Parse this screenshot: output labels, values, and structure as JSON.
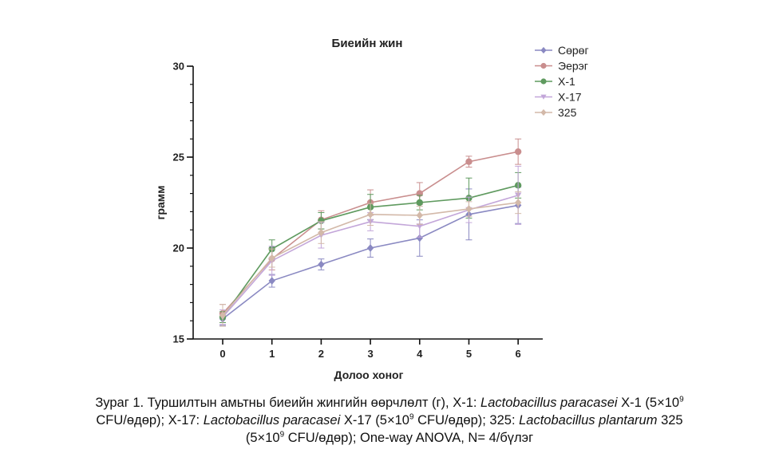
{
  "chart_data": {
    "type": "line",
    "title": "Биеийн жин",
    "xlabel": "Долоо хоног",
    "ylabel": "грамм",
    "x": [
      0,
      1,
      2,
      3,
      4,
      5,
      6
    ],
    "xlim": [
      -0.6,
      6.5
    ],
    "ylim": [
      15,
      30
    ],
    "xticks": [
      0,
      1,
      2,
      3,
      4,
      5,
      6
    ],
    "yticks": [
      15,
      20,
      25,
      30
    ],
    "y_minor_step": 1,
    "grid": false,
    "legend_position": "top-right",
    "series": [
      {
        "name": "Сөрөг",
        "color": "#8a89c2",
        "marker": "diamond",
        "values": [
          16.1,
          18.2,
          19.1,
          20.0,
          20.55,
          21.85,
          22.35
        ],
        "errors": [
          0.35,
          0.35,
          0.3,
          0.5,
          1.0,
          1.4,
          1.0
        ]
      },
      {
        "name": "Эерэг",
        "color": "#c98e8e",
        "marker": "circle",
        "values": [
          16.4,
          19.4,
          21.55,
          22.5,
          23.0,
          24.75,
          25.3
        ],
        "errors": [
          0.5,
          0.6,
          0.5,
          0.7,
          0.6,
          0.3,
          0.7
        ]
      },
      {
        "name": "X-1",
        "color": "#5f9a5f",
        "marker": "circle",
        "values": [
          16.2,
          19.95,
          21.5,
          22.25,
          22.5,
          22.75,
          23.45
        ],
        "errors": [
          0.3,
          0.5,
          0.45,
          0.7,
          0.4,
          1.1,
          0.7
        ]
      },
      {
        "name": "X-17",
        "color": "#c3a6d9",
        "marker": "triangle-down",
        "values": [
          16.2,
          19.3,
          20.7,
          21.45,
          21.2,
          22.1,
          22.9
        ],
        "errors": [
          0.4,
          0.8,
          0.7,
          0.5,
          0.6,
          0.7,
          1.6
        ]
      },
      {
        "name": "325",
        "color": "#d3b9a9",
        "marker": "diamond",
        "values": [
          16.3,
          19.45,
          20.85,
          21.85,
          21.8,
          22.15,
          22.5
        ],
        "errors": [
          0.6,
          0.5,
          0.6,
          0.6,
          0.5,
          0.4,
          0.6
        ]
      }
    ]
  },
  "caption": {
    "line1_a": "Зураг 1. Туршилтын амьтны биеийн жингийн өөрчлөлт (г), X-1: ",
    "line1_species": "Lactobacillus paracasei",
    "line1_b": " X-1 (5×10",
    "line1_exp": "9",
    "line2_a": "CFU/өдөр); X-17: ",
    "line2_species": "Lactobacillus paracasei",
    "line2_b": "  X-17 (5×10",
    "line2_exp": "9",
    "line2_c": " CFU/өдөр); 325: ",
    "line2_species2": "Lactobacillus plantarum",
    "line2_d": " 325",
    "line3_a": "(5×10",
    "line3_exp": "9",
    "line3_b": " CFU/өдөр); One-way ANOVA, N= 4/бүлэг"
  }
}
